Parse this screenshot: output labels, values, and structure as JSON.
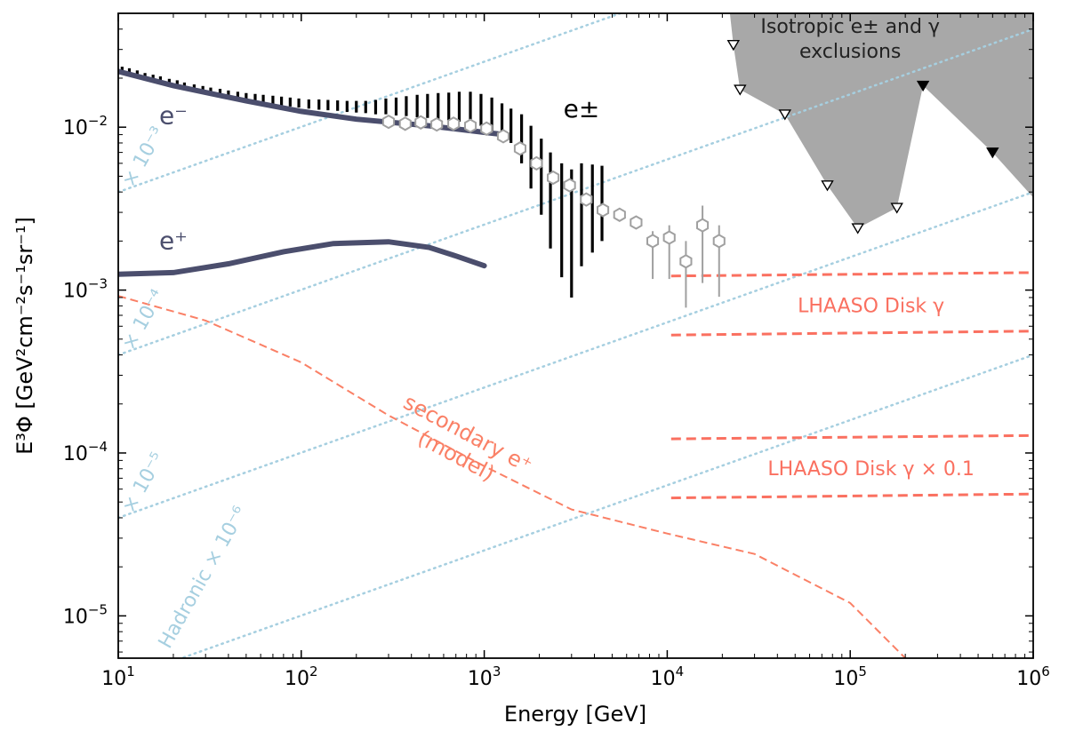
{
  "chart_data": {
    "type": "line",
    "xscale": "log",
    "yscale": "log",
    "xlim": [
      10,
      1000000
    ],
    "ylim": [
      5.5e-06,
      0.05
    ],
    "xlabel": "Energy [GeV]",
    "ylabel": "E³Φ [GeV²cm⁻²s⁻¹sr⁻¹]",
    "x_ticks": [
      {
        "value": 10,
        "base": "10",
        "exp": "1"
      },
      {
        "value": 100,
        "base": "10",
        "exp": "2"
      },
      {
        "value": 1000,
        "base": "10",
        "exp": "3"
      },
      {
        "value": 10000,
        "base": "10",
        "exp": "4"
      },
      {
        "value": 100000,
        "base": "10",
        "exp": "5"
      },
      {
        "value": 1000000,
        "base": "10",
        "exp": "6"
      }
    ],
    "y_ticks": [
      {
        "value": 1e-05,
        "base": "10",
        "exp": "−5"
      },
      {
        "value": 0.0001,
        "base": "10",
        "exp": "−4"
      },
      {
        "value": 0.001,
        "base": "10",
        "exp": "−3"
      },
      {
        "value": 0.01,
        "base": "10",
        "exp": "−2"
      }
    ],
    "colors": {
      "electron": "#4b4e6d",
      "secondary": "#fa8066",
      "lhaaso": "#fa7060",
      "hadronic": "#a6cfe0",
      "exclusion": "#a8a8a8",
      "points": "#a0a0a0",
      "data": "#000000"
    },
    "series": [
      {
        "name": "e⁻",
        "style": "thick-solid",
        "x": [
          10,
          20,
          50,
          100,
          200,
          500,
          1000,
          1300
        ],
        "y": [
          0.022,
          0.018,
          0.0145,
          0.0125,
          0.0112,
          0.0102,
          0.0093,
          0.009
        ]
      },
      {
        "name": "e⁺",
        "style": "thick-solid",
        "x": [
          10,
          20,
          40,
          80,
          150,
          300,
          500,
          700,
          1000
        ],
        "y": [
          0.00125,
          0.00128,
          0.00145,
          0.00172,
          0.00193,
          0.00198,
          0.00183,
          0.00162,
          0.00141
        ]
      },
      {
        "name": "secondary e⁺\n(model)",
        "style": "dashed",
        "x": [
          10,
          30,
          100,
          300,
          1000,
          3000,
          10000,
          30000,
          100000,
          200000
        ],
        "y": [
          0.00092,
          0.00065,
          0.00036,
          0.00017,
          8.3e-05,
          4.5e-05,
          3.2e-05,
          2.4e-05,
          1.2e-05,
          5.5e-06
        ]
      }
    ],
    "lhaaso_bands": [
      {
        "label": "LHAASO Disk γ",
        "x": [
          10500,
          1000000
        ],
        "upper": [
          0.00122,
          0.00128
        ],
        "lower": [
          0.00053,
          0.00056
        ]
      },
      {
        "label": "LHAASO Disk γ × 0.1",
        "x": [
          10500,
          1000000
        ],
        "upper": [
          0.000122,
          0.000128
        ],
        "lower": [
          5.3e-05,
          5.6e-05
        ]
      }
    ],
    "hadronic_lines": [
      {
        "label": "× 10⁻³",
        "x": [
          10,
          1000000
        ],
        "y": [
          0.004,
          0.4
        ]
      },
      {
        "label": "× 10⁻⁴",
        "x": [
          10,
          1000000
        ],
        "y": [
          0.0004,
          0.04
        ]
      },
      {
        "label": "× 10⁻⁵",
        "x": [
          10,
          1000000
        ],
        "y": [
          4e-05,
          0.004
        ]
      },
      {
        "label": "Hadronic × 10⁻⁶",
        "x": [
          10,
          1000000
        ],
        "y": [
          4e-06,
          0.0004
        ]
      }
    ],
    "exclusion_region": {
      "label": "Isotropic e± and γ\nexclusions",
      "boundary": [
        [
          22000,
          0.05
        ],
        [
          23000,
          0.032
        ],
        [
          25000,
          0.017
        ],
        [
          44000,
          0.012
        ],
        [
          75000,
          0.0044
        ],
        [
          110000,
          0.0024
        ],
        [
          180000,
          0.0032
        ],
        [
          250000,
          0.018
        ],
        [
          600000,
          0.007
        ],
        [
          1000000,
          0.0037
        ],
        [
          1000000,
          0.05
        ]
      ],
      "open_triangles": [
        [
          23000,
          0.032
        ],
        [
          25000,
          0.017
        ],
        [
          44000,
          0.012
        ],
        [
          75000,
          0.0044
        ],
        [
          110000,
          0.0024
        ],
        [
          180000,
          0.0032
        ]
      ],
      "filled_triangles": [
        [
          250000,
          0.018
        ],
        [
          600000,
          0.007
        ]
      ]
    },
    "epm_points": {
      "label": "e±",
      "x": [
        300,
        370,
        450,
        550,
        680,
        840,
        1030,
        1270,
        1570,
        1930,
        2380,
        2930,
        3610,
        4450,
        5490,
        6760,
        8330,
        10260,
        12650,
        15590,
        19210
      ],
      "y": [
        0.0108,
        0.0105,
        0.0107,
        0.0104,
        0.0105,
        0.0102,
        0.0098,
        0.0088,
        0.0074,
        0.006,
        0.0049,
        0.0044,
        0.0036,
        0.0031,
        0.0029,
        0.0026,
        0.002,
        0.0021,
        0.0015,
        0.0025,
        0.002
      ],
      "err_lo": [
        0,
        0,
        0,
        0,
        0,
        0,
        0,
        0,
        0,
        0,
        0,
        0,
        0,
        0,
        0,
        0,
        0.0018,
        0.0018,
        0.0012,
        0.0017,
        0.0014
      ],
      "err_hi": [
        0,
        0,
        0,
        0,
        0,
        0,
        0,
        0,
        0,
        0,
        0,
        0,
        0,
        0,
        0,
        0,
        0.0023,
        0.0025,
        0.002,
        0.0033,
        0.0025
      ]
    },
    "epm_bars": {
      "x": [
        10.5,
        11.5,
        12.7,
        14,
        15.5,
        17,
        19,
        21,
        23,
        26,
        29,
        32,
        36,
        40,
        45,
        50,
        56,
        62,
        70,
        78,
        87,
        97,
        110,
        125,
        140,
        158,
        178,
        200,
        225,
        255,
        290,
        330,
        375,
        430,
        490,
        560,
        640,
        730,
        840,
        960,
        1100,
        1250,
        1400,
        1600,
        1800,
        2050,
        2300,
        2650,
        3000,
        3400,
        3900,
        4400
      ],
      "lo": [
        0.0215,
        0.021,
        0.0205,
        0.0198,
        0.019,
        0.0185,
        0.018,
        0.0175,
        0.017,
        0.0165,
        0.016,
        0.0157,
        0.0152,
        0.015,
        0.0148,
        0.0145,
        0.0142,
        0.014,
        0.0138,
        0.0136,
        0.0134,
        0.0132,
        0.013,
        0.0128,
        0.0127,
        0.0126,
        0.0124,
        0.0123,
        0.0122,
        0.012,
        0.012,
        0.0118,
        0.0117,
        0.0115,
        0.0114,
        0.0112,
        0.011,
        0.0108,
        0.0105,
        0.0102,
        0.0095,
        0.0088,
        0.008,
        0.006,
        0.0042,
        0.0029,
        0.0018,
        0.0012,
        0.0009,
        0.0014,
        0.0017,
        0.002
      ],
      "hi": [
        0.0235,
        0.023,
        0.0223,
        0.0215,
        0.021,
        0.0205,
        0.0198,
        0.0194,
        0.0188,
        0.0183,
        0.0179,
        0.0175,
        0.0172,
        0.0168,
        0.0165,
        0.0162,
        0.016,
        0.0158,
        0.0156,
        0.0154,
        0.0152,
        0.015,
        0.0148,
        0.0148,
        0.0147,
        0.0146,
        0.0145,
        0.0145,
        0.0145,
        0.0147,
        0.015,
        0.0152,
        0.0155,
        0.0158,
        0.016,
        0.0162,
        0.0163,
        0.0165,
        0.0165,
        0.016,
        0.0152,
        0.014,
        0.013,
        0.012,
        0.0102,
        0.0085,
        0.007,
        0.006,
        0.0055,
        0.006,
        0.0059,
        0.0058
      ]
    },
    "annotations": [
      {
        "text": "e⁻",
        "x": 20,
        "y": 0.0105,
        "color": "#4b4e6d",
        "size": 28
      },
      {
        "text": "e⁺",
        "x": 20,
        "y": 0.00178,
        "color": "#4b4e6d",
        "size": 28
      },
      {
        "text": "e±",
        "x": 3400,
        "y": 0.0115,
        "color": "#000000",
        "size": 28
      }
    ]
  }
}
